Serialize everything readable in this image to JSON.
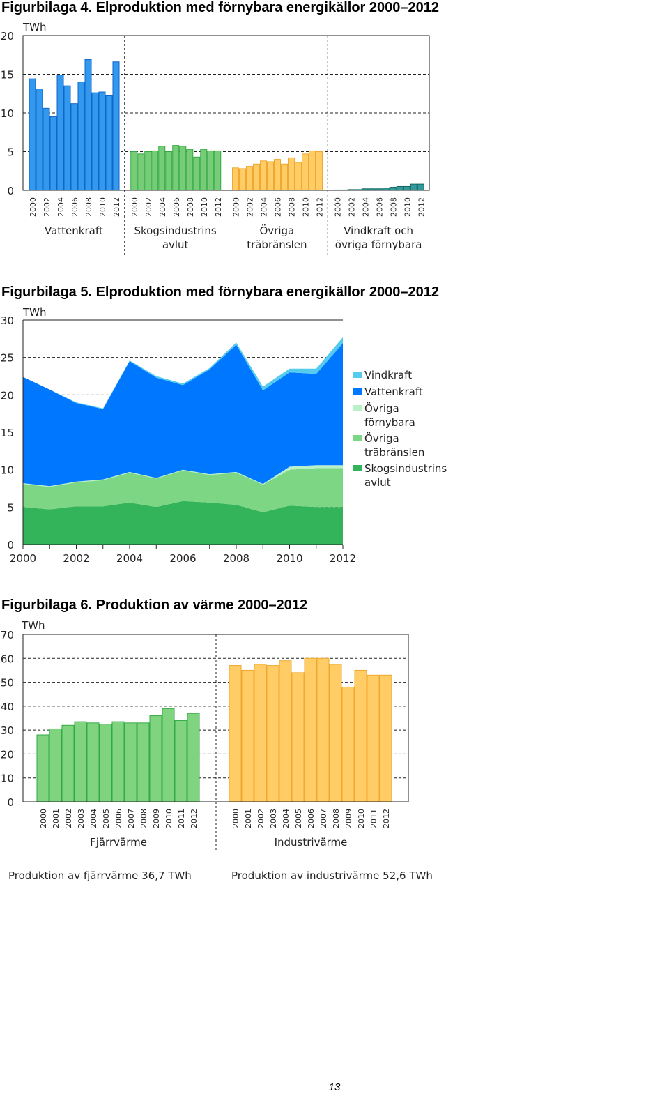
{
  "figure4": {
    "title": "Figurbilaga 4. Elproduktion med förnybara energikällor 2000–2012"
  },
  "figure5": {
    "title": "Figurbilaga 5. Elproduktion med förnybara energikällor 2000–2012"
  },
  "figure6": {
    "title": "Figurbilaga 6. Produktion av värme 2000–2012",
    "note_left": "Produktion av fjärrvärme 36,7 TWh",
    "note_right": "Produktion av industrivärme 52,6 TWh"
  },
  "page_number": "13",
  "chart_data": [
    {
      "type": "bar",
      "ylabel": "TWh",
      "ylim": [
        0,
        20
      ],
      "yticks": [
        0,
        5,
        10,
        15,
        20
      ],
      "grid": "dashed-horizontal",
      "x": [
        "2000",
        "2001",
        "2002",
        "2003",
        "2004",
        "2005",
        "2006",
        "2007",
        "2008",
        "2009",
        "2010",
        "2011",
        "2012"
      ],
      "xtick_labels": [
        "2000",
        "2002",
        "2004",
        "2006",
        "2008",
        "2010",
        "2012"
      ],
      "groups": [
        {
          "label": "Vattenkraft",
          "color": "#3399ee",
          "edge": "#1166cc",
          "values": [
            14.4,
            13.1,
            10.6,
            9.5,
            14.9,
            13.5,
            11.2,
            14.0,
            16.9,
            12.6,
            12.7,
            12.3,
            16.6
          ]
        },
        {
          "label": "Skogsindustrins avlut",
          "color": "#77cc77",
          "edge": "#33aa44",
          "values": [
            5.0,
            4.7,
            5.0,
            5.1,
            5.7,
            5.0,
            5.8,
            5.7,
            5.3,
            4.3,
            5.3,
            5.1,
            5.1
          ]
        },
        {
          "label": "Övriga träbränslen",
          "color": "#ffcc66",
          "edge": "#f0a830",
          "values": [
            2.9,
            2.8,
            3.1,
            3.4,
            3.8,
            3.7,
            4.0,
            3.4,
            4.2,
            3.6,
            4.7,
            5.1,
            5.0
          ]
        },
        {
          "label": "Vindkraft och övriga förnybara",
          "color": "#339999",
          "edge": "#116666",
          "values": [
            0.05,
            0.05,
            0.1,
            0.1,
            0.2,
            0.2,
            0.2,
            0.3,
            0.4,
            0.5,
            0.5,
            0.8,
            0.8
          ]
        }
      ]
    },
    {
      "type": "area",
      "ylabel": "TWh",
      "ylim": [
        0,
        30
      ],
      "yticks": [
        0,
        5,
        10,
        15,
        20,
        25,
        30
      ],
      "grid": "dashed-horizontal",
      "x": [
        2000,
        2001,
        2002,
        2003,
        2004,
        2005,
        2006,
        2007,
        2008,
        2009,
        2010,
        2011,
        2012
      ],
      "xtick_labels": [
        "2000",
        "2002",
        "2004",
        "2006",
        "2008",
        "2010",
        "2012"
      ],
      "series": [
        {
          "name": "Skogsindustrins avlut",
          "color": "#33b35a",
          "values": [
            5.0,
            4.7,
            5.1,
            5.1,
            5.6,
            5.0,
            5.8,
            5.6,
            5.3,
            4.3,
            5.2,
            5.0,
            5.0
          ]
        },
        {
          "name": "Övriga träbränslen",
          "color": "#7dd683",
          "values": [
            3.1,
            3.0,
            3.2,
            3.5,
            4.0,
            3.8,
            4.1,
            3.7,
            4.3,
            3.7,
            4.8,
            5.2,
            5.2
          ]
        },
        {
          "name": "Övriga förnybara",
          "color": "#b8f0c8",
          "values": [
            0.1,
            0.1,
            0.1,
            0.1,
            0.1,
            0.1,
            0.1,
            0.1,
            0.1,
            0.1,
            0.4,
            0.4,
            0.4
          ]
        },
        {
          "name": "Vattenkraft",
          "color": "#0077ff",
          "values": [
            14.2,
            12.9,
            10.5,
            9.4,
            14.8,
            13.4,
            11.3,
            14.0,
            17.0,
            12.5,
            12.6,
            12.2,
            16.3
          ]
        },
        {
          "name": "Vindkraft",
          "color": "#55ccee",
          "values": [
            0.0,
            0.0,
            0.1,
            0.1,
            0.1,
            0.2,
            0.2,
            0.2,
            0.3,
            0.5,
            0.5,
            0.7,
            0.8
          ]
        }
      ],
      "legend": {
        "placement": "right",
        "entries": [
          {
            "lines": [
              "Vindkraft"
            ],
            "color": "#55ccee"
          },
          {
            "lines": [
              "Vattenkraft"
            ],
            "color": "#0077ff"
          },
          {
            "lines": [
              "Övriga",
              "förnybara"
            ],
            "color": "#b8f0c8"
          },
          {
            "lines": [
              "Övriga",
              "träbränslen"
            ],
            "color": "#7dd683"
          },
          {
            "lines": [
              "Skogsindustrins",
              "avlut"
            ],
            "color": "#33b35a"
          }
        ]
      }
    },
    {
      "type": "bar",
      "ylabel": "TWh",
      "ylim": [
        0,
        70
      ],
      "yticks": [
        0,
        10,
        20,
        30,
        40,
        50,
        60,
        70
      ],
      "grid": "dashed-horizontal",
      "x": [
        "2000",
        "2001",
        "2002",
        "2003",
        "2004",
        "2005",
        "2006",
        "2007",
        "2008",
        "2009",
        "2010",
        "2011",
        "2012"
      ],
      "xtick_labels": [
        "2000",
        "2001",
        "2002",
        "2003",
        "2004",
        "2005",
        "2006",
        "2007",
        "2008",
        "2009",
        "2010",
        "2011",
        "2012"
      ],
      "groups": [
        {
          "label": "Fjärrvärme",
          "color": "#80d480",
          "edge": "#33aa44",
          "values": [
            28,
            30.5,
            32,
            33.5,
            33,
            32.5,
            33.5,
            33,
            33,
            36,
            39,
            34,
            37
          ]
        },
        {
          "label": "Industrivärme",
          "color": "#ffcc66",
          "edge": "#f0a830",
          "values": [
            57,
            55,
            57.5,
            57,
            59,
            54,
            60,
            60,
            57.5,
            48,
            55,
            53,
            53
          ]
        }
      ]
    }
  ]
}
